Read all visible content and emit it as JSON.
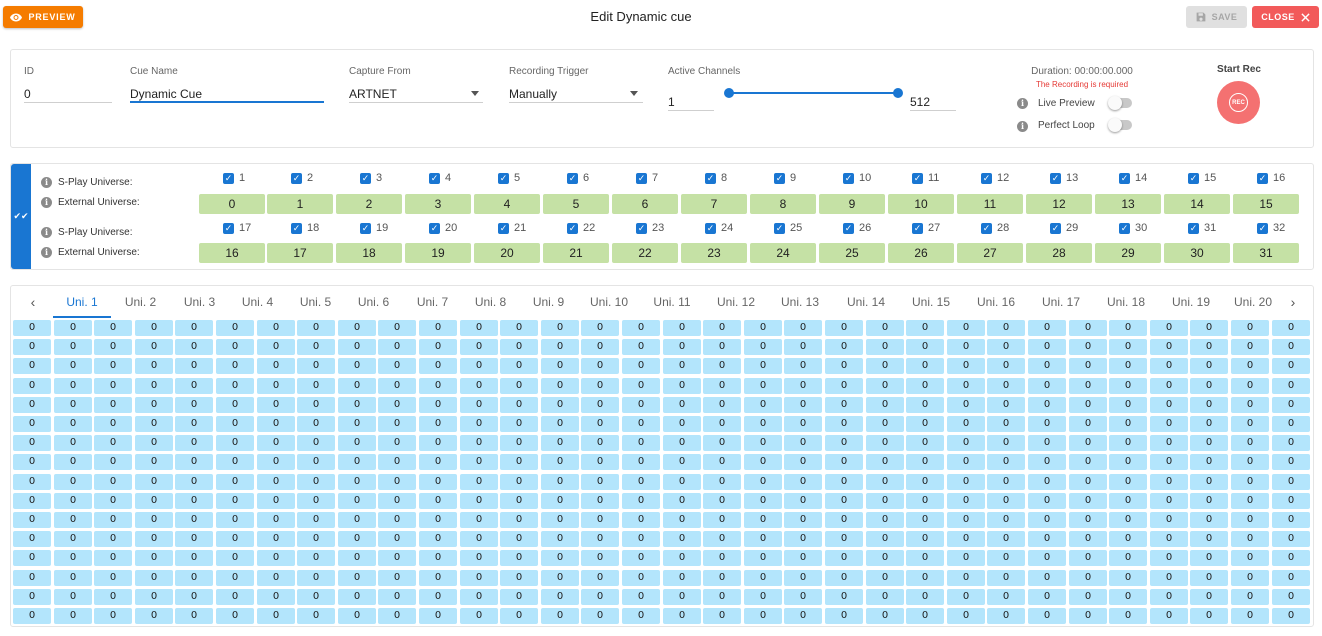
{
  "header": {
    "preview_label": "PREVIEW",
    "title": "Edit Dynamic cue",
    "save_label": "SAVE",
    "close_label": "CLOSE"
  },
  "form": {
    "id_label": "ID",
    "id_value": "0",
    "cue_name_label": "Cue Name",
    "cue_name_value": "Dynamic Cue",
    "capture_from_label": "Capture From",
    "capture_from_value": "ARTNET",
    "recording_trigger_label": "Recording Trigger",
    "recording_trigger_value": "Manually",
    "active_channels_label": "Active Channels",
    "active_channels_min": "1",
    "active_channels_max": "512",
    "duration": "Duration: 00:00:00.000",
    "recording_required": "The Recording is required",
    "live_preview_label": "Live Preview",
    "live_preview_on": false,
    "perfect_loop_label": "Perfect Loop",
    "perfect_loop_on": false,
    "start_rec_label": "Start Rec",
    "rec_icon_text": "REC"
  },
  "universes": {
    "splay_label": "S-Play Universe:",
    "external_label": "External Universe:",
    "splay_row1": [
      "1",
      "2",
      "3",
      "4",
      "5",
      "6",
      "7",
      "8",
      "9",
      "10",
      "11",
      "12",
      "13",
      "14",
      "15",
      "16"
    ],
    "external_row1": [
      "0",
      "1",
      "2",
      "3",
      "4",
      "5",
      "6",
      "7",
      "8",
      "9",
      "10",
      "11",
      "12",
      "13",
      "14",
      "15"
    ],
    "splay_row2": [
      "17",
      "18",
      "19",
      "20",
      "21",
      "22",
      "23",
      "24",
      "25",
      "26",
      "27",
      "28",
      "29",
      "30",
      "31",
      "32"
    ],
    "external_row2": [
      "16",
      "17",
      "18",
      "19",
      "20",
      "21",
      "22",
      "23",
      "24",
      "25",
      "26",
      "27",
      "28",
      "29",
      "30",
      "31"
    ]
  },
  "tabs": [
    "Uni. 1",
    "Uni. 2",
    "Uni. 3",
    "Uni. 4",
    "Uni. 5",
    "Uni. 6",
    "Uni. 7",
    "Uni. 8",
    "Uni. 9",
    "Uni. 10",
    "Uni. 11",
    "Uni. 12",
    "Uni. 13",
    "Uni. 14",
    "Uni. 15",
    "Uni. 16",
    "Uni. 17",
    "Uni. 18",
    "Uni. 19",
    "Uni. 20"
  ],
  "active_tab": 0,
  "channel_grid": {
    "rows": 16,
    "cols": 32,
    "value": "0"
  },
  "colors": {
    "primary": "#1976d2",
    "preview": "#f57c00",
    "close": "#f25a5a",
    "rec": "#f47171",
    "universe_cell": "#c5e1a5",
    "channel_cell": "#b3e5fc"
  },
  "icons": {
    "preview": "eye-icon",
    "save": "floppy-icon",
    "close": "close-icon",
    "info": "info-icon",
    "rec": "record-icon",
    "collapse": "double-check-icon",
    "tab_prev": "chevron-left-icon",
    "tab_next": "chevron-right-icon"
  }
}
